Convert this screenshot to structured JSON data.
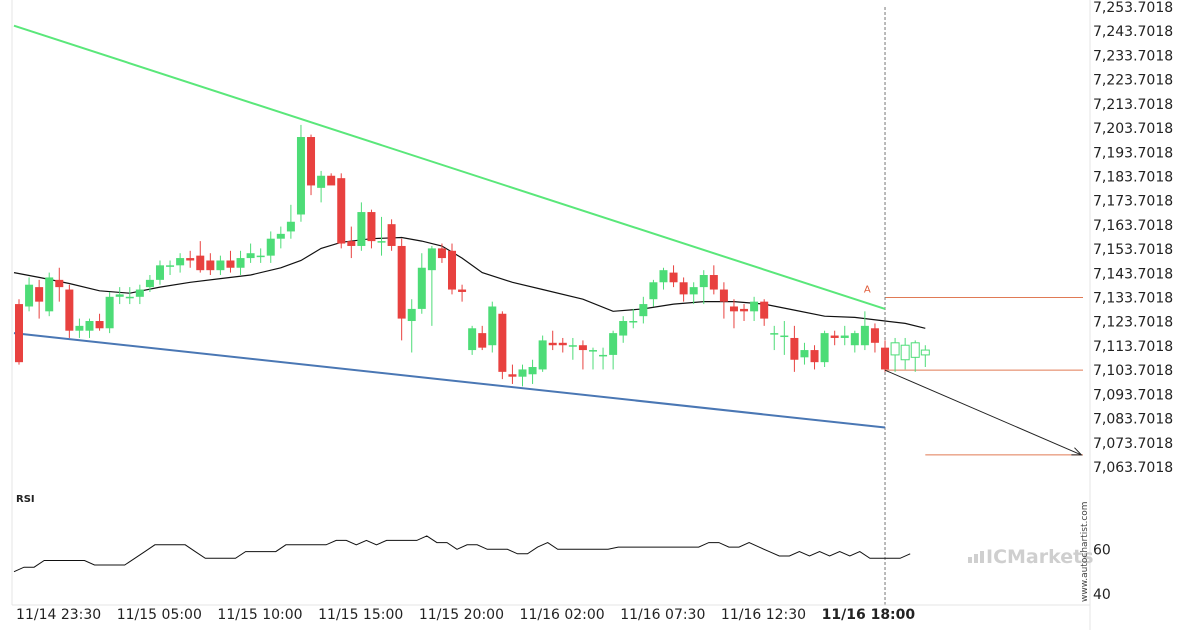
{
  "colors": {
    "up_candle": "#4ddc77",
    "down_candle": "#e8413f",
    "resistance_line": "#5ae77a",
    "support_line": "#4a77b4",
    "moving_average": "#111111",
    "level_line": "#e07a55",
    "projection_arrow": "#222222",
    "rsi_line": "#111111",
    "axis_text": "#222222",
    "watermark": "#cfcfcf",
    "vertical_marker": "#777777"
  },
  "watermark": {
    "logo_text": "ICMarkets",
    "site_text": "www.autochartist.com"
  },
  "chart_data": {
    "type": "candlestick",
    "price_axis": {
      "ylim": [
        7063.7018,
        7253.7018
      ],
      "tick_labels": [
        "7,253.7018",
        "7,243.7018",
        "7,233.7018",
        "7,223.7018",
        "7,213.7018",
        "7,203.7018",
        "7,193.7018",
        "7,183.7018",
        "7,173.7018",
        "7,163.7018",
        "7,153.7018",
        "7,143.7018",
        "7,133.7018",
        "7,123.7018",
        "7,113.7018",
        "7,103.7018",
        "7,093.7018",
        "7,083.7018",
        "7,073.7018",
        "7,063.7018"
      ],
      "tick_values": [
        7253.7018,
        7243.7018,
        7233.7018,
        7223.7018,
        7213.7018,
        7203.7018,
        7193.7018,
        7183.7018,
        7173.7018,
        7163.7018,
        7153.7018,
        7143.7018,
        7133.7018,
        7123.7018,
        7113.7018,
        7103.7018,
        7093.7018,
        7083.7018,
        7073.7018,
        7063.7018
      ]
    },
    "time_axis": {
      "labels": [
        "11/14 23:30",
        "11/15 05:00",
        "11/15 10:00",
        "11/15 15:00",
        "11/15 20:00",
        "11/16 02:00",
        "11/16 07:30",
        "11/16 12:30",
        "11/16 18:00"
      ],
      "label_bar_index": [
        0.5,
        10.5,
        20.5,
        30.5,
        40.5,
        50.5,
        60.5,
        70.5,
        80.5
      ],
      "highlighted_label": "11/16 18:00"
    },
    "candles": [
      {
        "o": 7131,
        "h": 7133,
        "l": 7106,
        "c": 7107
      },
      {
        "o": 7130,
        "h": 7142,
        "l": 7128,
        "c": 7139
      },
      {
        "o": 7138,
        "h": 7141,
        "l": 7125,
        "c": 7132
      },
      {
        "o": 7128,
        "h": 7144,
        "l": 7126,
        "c": 7142
      },
      {
        "o": 7141,
        "h": 7146,
        "l": 7132,
        "c": 7138
      },
      {
        "o": 7137,
        "h": 7139,
        "l": 7117,
        "c": 7120
      },
      {
        "o": 7120,
        "h": 7125,
        "l": 7117,
        "c": 7122
      },
      {
        "o": 7120,
        "h": 7125,
        "l": 7117,
        "c": 7124
      },
      {
        "o": 7124,
        "h": 7127,
        "l": 7120,
        "c": 7121
      },
      {
        "o": 7121,
        "h": 7136,
        "l": 7119,
        "c": 7134
      },
      {
        "o": 7134,
        "h": 7138,
        "l": 7131,
        "c": 7135
      },
      {
        "o": 7134,
        "h": 7138,
        "l": 7131,
        "c": 7134
      },
      {
        "o": 7134,
        "h": 7139,
        "l": 7131,
        "c": 7137
      },
      {
        "o": 7138,
        "h": 7143,
        "l": 7136,
        "c": 7141
      },
      {
        "o": 7141,
        "h": 7149,
        "l": 7139,
        "c": 7147
      },
      {
        "o": 7147,
        "h": 7149,
        "l": 7143,
        "c": 7147
      },
      {
        "o": 7147,
        "h": 7152,
        "l": 7144,
        "c": 7150
      },
      {
        "o": 7150,
        "h": 7153,
        "l": 7146,
        "c": 7149
      },
      {
        "o": 7151,
        "h": 7157,
        "l": 7144,
        "c": 7145
      },
      {
        "o": 7149,
        "h": 7152,
        "l": 7143,
        "c": 7145
      },
      {
        "o": 7145,
        "h": 7151,
        "l": 7143,
        "c": 7149
      },
      {
        "o": 7149,
        "h": 7153,
        "l": 7144,
        "c": 7146
      },
      {
        "o": 7146,
        "h": 7153,
        "l": 7143,
        "c": 7150
      },
      {
        "o": 7150,
        "h": 7156,
        "l": 7148,
        "c": 7152
      },
      {
        "o": 7151,
        "h": 7154,
        "l": 7148,
        "c": 7151
      },
      {
        "o": 7151,
        "h": 7161,
        "l": 7148,
        "c": 7158
      },
      {
        "o": 7158,
        "h": 7163,
        "l": 7154,
        "c": 7160
      },
      {
        "o": 7161,
        "h": 7172,
        "l": 7158,
        "c": 7165
      },
      {
        "o": 7168,
        "h": 7205,
        "l": 7165,
        "c": 7200
      },
      {
        "o": 7200,
        "h": 7201,
        "l": 7176,
        "c": 7180
      },
      {
        "o": 7179,
        "h": 7186,
        "l": 7173,
        "c": 7184
      },
      {
        "o": 7184,
        "h": 7185,
        "l": 7181,
        "c": 7180
      },
      {
        "o": 7183,
        "h": 7185,
        "l": 7154,
        "c": 7156
      },
      {
        "o": 7157,
        "h": 7163,
        "l": 7150,
        "c": 7155
      },
      {
        "o": 7155,
        "h": 7173,
        "l": 7153,
        "c": 7169
      },
      {
        "o": 7169,
        "h": 7170,
        "l": 7154,
        "c": 7157
      },
      {
        "o": 7157,
        "h": 7167,
        "l": 7151,
        "c": 7157
      },
      {
        "o": 7164,
        "h": 7166,
        "l": 7153,
        "c": 7155
      },
      {
        "o": 7155,
        "h": 7158,
        "l": 7116,
        "c": 7125
      },
      {
        "o": 7124,
        "h": 7133,
        "l": 7111,
        "c": 7129
      },
      {
        "o": 7129,
        "h": 7152,
        "l": 7127,
        "c": 7146
      },
      {
        "o": 7145,
        "h": 7155,
        "l": 7122,
        "c": 7154
      },
      {
        "o": 7154,
        "h": 7156,
        "l": 7148,
        "c": 7150
      },
      {
        "o": 7153,
        "h": 7156,
        "l": 7135,
        "c": 7137
      },
      {
        "o": 7137,
        "h": 7139,
        "l": 7132,
        "c": 7136
      },
      {
        "o": 7112,
        "h": 7122,
        "l": 7110,
        "c": 7121
      },
      {
        "o": 7119,
        "h": 7122,
        "l": 7112,
        "c": 7113
      },
      {
        "o": 7114,
        "h": 7132,
        "l": 7111,
        "c": 7130
      },
      {
        "o": 7127,
        "h": 7128,
        "l": 7100,
        "c": 7103
      },
      {
        "o": 7102,
        "h": 7106,
        "l": 7098,
        "c": 7101
      },
      {
        "o": 7101,
        "h": 7106,
        "l": 7097,
        "c": 7104
      },
      {
        "o": 7102,
        "h": 7108,
        "l": 7098,
        "c": 7105
      },
      {
        "o": 7104,
        "h": 7118,
        "l": 7103,
        "c": 7116
      },
      {
        "o": 7115,
        "h": 7120,
        "l": 7112,
        "c": 7114
      },
      {
        "o": 7115,
        "h": 7117,
        "l": 7111,
        "c": 7114
      },
      {
        "o": 7114,
        "h": 7117,
        "l": 7108,
        "c": 7114
      },
      {
        "o": 7114,
        "h": 7116,
        "l": 7104,
        "c": 7112
      },
      {
        "o": 7112,
        "h": 7113,
        "l": 7104,
        "c": 7112
      },
      {
        "o": 7110,
        "h": 7113,
        "l": 7104,
        "c": 7110
      },
      {
        "o": 7110,
        "h": 7120,
        "l": 7104,
        "c": 7119
      },
      {
        "o": 7118,
        "h": 7126,
        "l": 7115,
        "c": 7124
      },
      {
        "o": 7124,
        "h": 7129,
        "l": 7121,
        "c": 7124
      },
      {
        "o": 7126,
        "h": 7134,
        "l": 7123,
        "c": 7131
      },
      {
        "o": 7133,
        "h": 7141,
        "l": 7130,
        "c": 7140
      },
      {
        "o": 7140,
        "h": 7146,
        "l": 7137,
        "c": 7145
      },
      {
        "o": 7144,
        "h": 7147,
        "l": 7138,
        "c": 7140
      },
      {
        "o": 7140,
        "h": 7142,
        "l": 7132,
        "c": 7135
      },
      {
        "o": 7135,
        "h": 7140,
        "l": 7131,
        "c": 7138
      },
      {
        "o": 7138,
        "h": 7145,
        "l": 7131,
        "c": 7143
      },
      {
        "o": 7143,
        "h": 7147,
        "l": 7135,
        "c": 7137
      },
      {
        "o": 7137,
        "h": 7140,
        "l": 7125,
        "c": 7132
      },
      {
        "o": 7130,
        "h": 7133,
        "l": 7121,
        "c": 7128
      },
      {
        "o": 7129,
        "h": 7131,
        "l": 7124,
        "c": 7128
      },
      {
        "o": 7128,
        "h": 7134,
        "l": 7124,
        "c": 7132
      },
      {
        "o": 7132,
        "h": 7133,
        "l": 7122,
        "c": 7125
      },
      {
        "o": 7119,
        "h": 7122,
        "l": 7112,
        "c": 7119
      },
      {
        "o": 7118,
        "h": 7124,
        "l": 7110,
        "c": 7118
      },
      {
        "o": 7117,
        "h": 7122,
        "l": 7103,
        "c": 7108
      },
      {
        "o": 7109,
        "h": 7115,
        "l": 7106,
        "c": 7112
      },
      {
        "o": 7112,
        "h": 7114,
        "l": 7104,
        "c": 7107
      },
      {
        "o": 7107,
        "h": 7120,
        "l": 7105,
        "c": 7119
      },
      {
        "o": 7118,
        "h": 7120,
        "l": 7114,
        "c": 7117
      },
      {
        "o": 7117,
        "h": 7122,
        "l": 7114,
        "c": 7118
      },
      {
        "o": 7114,
        "h": 7120,
        "l": 7111,
        "c": 7119
      },
      {
        "o": 7114,
        "h": 7128,
        "l": 7112,
        "c": 7122
      },
      {
        "o": 7121,
        "h": 7123,
        "l": 7111,
        "c": 7115
      },
      {
        "o": 7113,
        "h": 7116,
        "l": 7103,
        "c": 7104
      }
    ],
    "ghost_candles": [
      {
        "o": 7110,
        "h": 7117,
        "l": 7103,
        "c": 7115
      },
      {
        "o": 7108,
        "h": 7117,
        "l": 7104,
        "c": 7114
      },
      {
        "o": 7109,
        "h": 7116,
        "l": 7103,
        "c": 7115
      },
      {
        "o": 7110,
        "h": 7114,
        "l": 7105,
        "c": 7112
      }
    ],
    "moving_average": [
      {
        "i": -0.5,
        "v": 7144
      },
      {
        "i": 2,
        "v": 7142
      },
      {
        "i": 5,
        "v": 7139.5
      },
      {
        "i": 8,
        "v": 7136.5
      },
      {
        "i": 11,
        "v": 7135.5
      },
      {
        "i": 14,
        "v": 7138
      },
      {
        "i": 17,
        "v": 7140
      },
      {
        "i": 20,
        "v": 7141.5
      },
      {
        "i": 23,
        "v": 7143
      },
      {
        "i": 26,
        "v": 7146
      },
      {
        "i": 28,
        "v": 7149
      },
      {
        "i": 30,
        "v": 7154
      },
      {
        "i": 32,
        "v": 7156.5
      },
      {
        "i": 35,
        "v": 7158
      },
      {
        "i": 38,
        "v": 7158.5
      },
      {
        "i": 40,
        "v": 7157
      },
      {
        "i": 42,
        "v": 7155
      },
      {
        "i": 44,
        "v": 7150
      },
      {
        "i": 46,
        "v": 7144
      },
      {
        "i": 49,
        "v": 7140
      },
      {
        "i": 52,
        "v": 7137
      },
      {
        "i": 56,
        "v": 7133
      },
      {
        "i": 59,
        "v": 7128
      },
      {
        "i": 62,
        "v": 7129
      },
      {
        "i": 65,
        "v": 7131
      },
      {
        "i": 68,
        "v": 7132
      },
      {
        "i": 71,
        "v": 7132
      },
      {
        "i": 74,
        "v": 7131
      },
      {
        "i": 77,
        "v": 7128.5
      },
      {
        "i": 80,
        "v": 7126
      },
      {
        "i": 83,
        "v": 7125.5
      },
      {
        "i": 86,
        "v": 7124
      },
      {
        "i": 88,
        "v": 7123
      },
      {
        "i": 90,
        "v": 7121
      }
    ],
    "resistance_line": {
      "start": {
        "i": -0.5,
        "v": 7246
      },
      "end": {
        "i": 86,
        "v": 7129
      }
    },
    "support_line": {
      "start": {
        "i": -0.5,
        "v": 7119
      },
      "end": {
        "i": 86,
        "v": 7080
      }
    },
    "levels": [
      7133.7,
      7103.7,
      7068.7
    ],
    "level_starts": [
      86,
      86,
      90
    ],
    "projection_arrow": {
      "from": {
        "i": 86,
        "v": 7103.7
      },
      "to": {
        "i": 105.5,
        "v": 7068.7
      }
    },
    "marker": {
      "label": "A",
      "i": 84.2,
      "v": 7134.5
    },
    "vertical_marker_bar": 86,
    "rsi": {
      "label": "RSI",
      "ylim": [
        28,
        78
      ],
      "tick_labels": [
        "60",
        "40"
      ],
      "tick_values": [
        60,
        40
      ],
      "values": [
        50,
        52,
        52,
        55,
        55,
        55,
        55,
        55,
        53,
        53,
        53,
        53,
        56,
        59,
        62,
        62,
        62,
        62,
        59,
        56,
        56,
        56,
        56,
        59,
        59,
        59,
        59,
        62,
        62,
        62,
        62,
        62,
        64,
        64,
        62,
        64,
        62,
        64,
        64,
        64,
        64,
        66,
        63,
        63,
        60,
        62,
        62,
        60,
        60,
        60,
        58,
        58,
        61,
        63,
        60,
        60,
        60,
        60,
        60,
        60,
        61,
        61,
        61,
        61,
        61,
        61,
        61,
        61,
        61,
        63,
        63,
        61,
        61,
        63,
        61,
        59,
        57,
        57,
        59,
        57,
        59,
        57,
        59,
        57,
        59,
        56,
        56,
        56,
        56,
        58
      ]
    }
  }
}
